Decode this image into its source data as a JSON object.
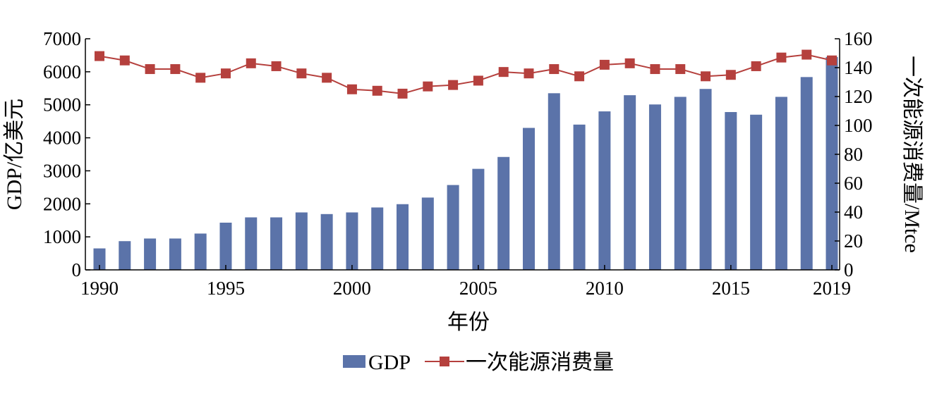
{
  "chart_data": {
    "type": "bar+line",
    "x": [
      1990,
      1991,
      1992,
      1993,
      1994,
      1995,
      1996,
      1997,
      1998,
      1999,
      2000,
      2001,
      2002,
      2003,
      2004,
      2005,
      2006,
      2007,
      2008,
      2009,
      2010,
      2011,
      2012,
      2013,
      2014,
      2015,
      2016,
      2017,
      2018,
      2019
    ],
    "x_tick_labels": [
      "1990",
      "1995",
      "2000",
      "2005",
      "2010",
      "2015",
      "2019"
    ],
    "xlabel": "年份",
    "ylabel_left": "GDP/亿美元",
    "ylabel_right": "一次能源消费量/Mtce",
    "ylim_left": [
      0,
      7000
    ],
    "ylim_right": [
      0,
      160
    ],
    "y_ticks_left": [
      0,
      1000,
      2000,
      3000,
      4000,
      5000,
      6000,
      7000
    ],
    "y_ticks_right": [
      0,
      20,
      40,
      60,
      80,
      100,
      120,
      140,
      160
    ],
    "grid": false,
    "legend_position": "bottom-center",
    "series": [
      {
        "name": "GDP",
        "type": "bar",
        "axis": "left",
        "color": "#5b73a9",
        "values": [
          650,
          870,
          950,
          950,
          1100,
          1430,
          1590,
          1590,
          1740,
          1690,
          1740,
          1890,
          1990,
          2190,
          2570,
          3060,
          3420,
          4300,
          5350,
          4400,
          4800,
          5290,
          5010,
          5240,
          5480,
          4780,
          4700,
          5240,
          5840,
          6450
        ]
      },
      {
        "name": "一次能源消费量",
        "type": "line",
        "axis": "right",
        "color": "#b5403d",
        "values": [
          148,
          145,
          139,
          139,
          133,
          136,
          143,
          141,
          136,
          133,
          125,
          124,
          122,
          127,
          128,
          131,
          137,
          136,
          139,
          134,
          142,
          143,
          139,
          139,
          134,
          135,
          141,
          147,
          149,
          145
        ]
      }
    ]
  }
}
